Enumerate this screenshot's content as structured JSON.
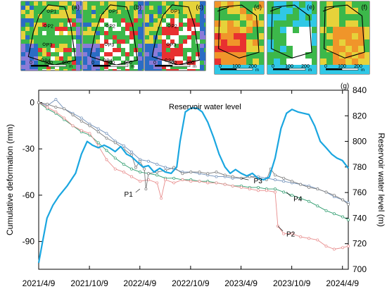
{
  "panels": [
    {
      "label": "(a)",
      "points": [
        {
          "name": "P1"
        },
        {
          "name": "P2"
        },
        {
          "name": "P3"
        },
        {
          "name": "P4"
        }
      ],
      "scale_ticks": [
        "0",
        "300",
        "600"
      ],
      "scale_unit": "m"
    },
    {
      "label": "(b)",
      "points": [
        {
          "name": "P1"
        },
        {
          "name": "P2"
        },
        {
          "name": "P3"
        },
        {
          "name": "P4"
        }
      ],
      "scale_ticks": [
        "0",
        "300",
        "600"
      ],
      "scale_unit": "m"
    },
    {
      "label": "(c)",
      "points": [
        {
          "name": "P1"
        },
        {
          "name": "P2"
        },
        {
          "name": "P3"
        },
        {
          "name": "P4"
        }
      ],
      "scale_ticks": [
        "0",
        "300",
        "600"
      ],
      "scale_unit": "m"
    },
    {
      "label": "(d)",
      "points": [],
      "scale_ticks": [
        "0",
        "100",
        "200"
      ],
      "scale_unit": "m"
    },
    {
      "label": "(e)",
      "points": [],
      "scale_ticks": [
        "0",
        "100",
        "200"
      ],
      "scale_unit": "m"
    },
    {
      "label": "(f)",
      "points": [],
      "scale_ticks": [
        "0",
        "100",
        "200"
      ],
      "scale_unit": "m"
    }
  ],
  "colors": {
    "water": "#1aa6e0",
    "P1": "#7a7a7a",
    "P2": "#e88c8c",
    "P3": "#6f8fb8",
    "P4": "#2e9c6e",
    "inset_blue": "#2b6cc4",
    "inset_purple": "#8b7bd8",
    "inset_green": "#3cb84a",
    "inset_yellow": "#e6d23a",
    "inset_orange": "#f0952a",
    "inset_red": "#e83030",
    "inset_cyan": "#30c8e6"
  },
  "chart_data": {
    "type": "line",
    "panel_label": "(g)",
    "xlabel": "",
    "ylabel": "Cumulative deformation (mm)",
    "y2label": "Reservoir water level (m)",
    "x_ticks": [
      "2021/4/9",
      "2021/10/9",
      "2022/4/9",
      "2022/10/9",
      "2023/4/9",
      "2023/10/9",
      "2024/4/9"
    ],
    "xlim": [
      "2021/4/9",
      "2024/4/30"
    ],
    "y_ticks": [
      0,
      -30,
      -60,
      -90
    ],
    "ylim": [
      -108,
      8
    ],
    "y2_ticks": [
      700,
      720,
      740,
      760,
      780,
      800,
      820,
      840
    ],
    "y2lim": [
      700,
      840
    ],
    "annotation": "Reservoir water level",
    "series": [
      {
        "name": "Reservoir water level",
        "axis": "right",
        "points": [
          [
            "2021/4/9",
            705
          ],
          [
            "2021/4/20",
            718
          ],
          [
            "2021/5/9",
            740
          ],
          [
            "2021/5/30",
            750
          ],
          [
            "2021/6/20",
            757
          ],
          [
            "2021/7/20",
            765
          ],
          [
            "2021/8/20",
            775
          ],
          [
            "2021/9/10",
            790
          ],
          [
            "2021/10/1",
            800
          ],
          [
            "2021/10/20",
            797
          ],
          [
            "2021/11/10",
            795
          ],
          [
            "2021/12/1",
            797
          ],
          [
            "2021/12/20",
            795
          ],
          [
            "2022/1/10",
            792
          ],
          [
            "2022/1/30",
            796
          ],
          [
            "2022/2/20",
            790
          ],
          [
            "2022/3/10",
            788
          ],
          [
            "2022/3/30",
            784
          ],
          [
            "2022/4/20",
            780
          ],
          [
            "2022/5/10",
            781
          ],
          [
            "2022/5/30",
            776
          ],
          [
            "2022/6/20",
            779
          ],
          [
            "2022/7/10",
            776
          ],
          [
            "2022/7/31",
            775
          ],
          [
            "2022/8/20",
            780
          ],
          [
            "2022/9/1",
            800
          ],
          [
            "2022/9/20",
            823
          ],
          [
            "2022/10/10",
            826
          ],
          [
            "2022/11/1",
            826
          ],
          [
            "2022/11/20",
            823
          ],
          [
            "2022/12/10",
            815
          ],
          [
            "2022/12/31",
            803
          ],
          [
            "2023/1/20",
            790
          ],
          [
            "2023/2/10",
            780
          ],
          [
            "2023/3/1",
            775
          ],
          [
            "2023/3/20",
            778
          ],
          [
            "2023/4/9",
            775
          ],
          [
            "2023/4/30",
            773
          ],
          [
            "2023/5/20",
            775
          ],
          [
            "2023/6/10",
            771
          ],
          [
            "2023/6/30",
            770
          ],
          [
            "2023/7/20",
            772
          ],
          [
            "2023/8/10",
            787
          ],
          [
            "2023/8/31",
            810
          ],
          [
            "2023/9/20",
            822
          ],
          [
            "2023/10/10",
            825
          ],
          [
            "2023/10/31",
            823
          ],
          [
            "2023/11/20",
            822
          ],
          [
            "2023/12/10",
            821
          ],
          [
            "2023/12/31",
            812
          ],
          [
            "2024/1/20",
            800
          ],
          [
            "2024/2/10",
            795
          ],
          [
            "2024/3/1",
            790
          ],
          [
            "2024/3/20",
            787
          ],
          [
            "2024/4/9",
            785
          ],
          [
            "2024/4/30",
            779
          ]
        ]
      },
      {
        "name": "P1",
        "axis": "left",
        "points": [
          [
            "2021/4/9",
            0
          ],
          [
            "2021/5/10",
            -1
          ],
          [
            "2021/6/10",
            -3
          ],
          [
            "2021/7/10",
            -4
          ],
          [
            "2021/8/10",
            -8
          ],
          [
            "2021/9/10",
            -12
          ],
          [
            "2021/10/10",
            -15
          ],
          [
            "2021/11/10",
            -19
          ],
          [
            "2021/12/10",
            -23
          ],
          [
            "2022/1/10",
            -26
          ],
          [
            "2022/2/10",
            -30
          ],
          [
            "2022/3/10",
            -34
          ],
          [
            "2022/3/25",
            -42
          ],
          [
            "2022/4/9",
            -38
          ],
          [
            "2022/4/25",
            -43
          ],
          [
            "2022/5/1",
            -56
          ],
          [
            "2022/5/10",
            -46
          ],
          [
            "2022/6/10",
            -45
          ],
          [
            "2022/7/10",
            -44
          ],
          [
            "2022/8/10",
            -42
          ],
          [
            "2022/9/10",
            -46
          ],
          [
            "2022/10/10",
            -45
          ],
          [
            "2022/11/10",
            -45
          ],
          [
            "2022/12/10",
            -46
          ],
          [
            "2023/1/10",
            -45
          ],
          [
            "2023/2/10",
            -47
          ],
          [
            "2023/3/10",
            -48
          ],
          [
            "2023/4/10",
            -49
          ],
          [
            "2023/5/10",
            -48
          ],
          [
            "2023/6/10",
            -49
          ],
          [
            "2023/7/10",
            -50
          ],
          [
            "2023/7/25",
            -43
          ],
          [
            "2023/8/10",
            -47
          ],
          [
            "2023/9/10",
            -49
          ],
          [
            "2023/10/10",
            -51
          ],
          [
            "2023/11/10",
            -53
          ],
          [
            "2023/12/10",
            -55
          ],
          [
            "2024/1/10",
            -56
          ],
          [
            "2024/2/10",
            -58
          ],
          [
            "2024/3/10",
            -60
          ],
          [
            "2024/4/10",
            -63
          ],
          [
            "2024/4/30",
            -66
          ]
        ]
      },
      {
        "name": "P2",
        "axis": "left",
        "points": [
          [
            "2021/4/9",
            0
          ],
          [
            "2021/5/10",
            -3
          ],
          [
            "2021/6/10",
            -6
          ],
          [
            "2021/7/10",
            -10
          ],
          [
            "2021/8/10",
            -15
          ],
          [
            "2021/9/10",
            -18
          ],
          [
            "2021/10/10",
            -20
          ],
          [
            "2021/11/10",
            -28
          ],
          [
            "2021/12/10",
            -37
          ],
          [
            "2022/1/10",
            -43
          ],
          [
            "2022/2/10",
            -45
          ],
          [
            "2022/3/10",
            -48
          ],
          [
            "2022/4/10",
            -51
          ],
          [
            "2022/5/10",
            -50
          ],
          [
            "2022/6/10",
            -52
          ],
          [
            "2022/6/25",
            -62
          ],
          [
            "2022/7/10",
            -50
          ],
          [
            "2022/8/10",
            -52
          ],
          [
            "2022/9/10",
            -50
          ],
          [
            "2022/10/10",
            -51
          ],
          [
            "2022/11/10",
            -51
          ],
          [
            "2022/12/10",
            -52
          ],
          [
            "2023/1/10",
            -52
          ],
          [
            "2023/2/10",
            -53
          ],
          [
            "2023/3/10",
            -54
          ],
          [
            "2023/4/10",
            -55
          ],
          [
            "2023/5/10",
            -56
          ],
          [
            "2023/6/10",
            -57
          ],
          [
            "2023/7/10",
            -57
          ],
          [
            "2023/8/10",
            -58
          ],
          [
            "2023/8/20",
            -80
          ],
          [
            "2023/9/10",
            -85
          ],
          [
            "2023/10/10",
            -85
          ],
          [
            "2023/11/10",
            -87
          ],
          [
            "2023/12/10",
            -88
          ],
          [
            "2024/1/10",
            -89
          ],
          [
            "2024/2/10",
            -93
          ],
          [
            "2024/3/10",
            -95
          ],
          [
            "2024/4/10",
            -94
          ],
          [
            "2024/4/30",
            -93
          ]
        ]
      },
      {
        "name": "P3",
        "axis": "left",
        "points": [
          [
            "2021/4/9",
            0
          ],
          [
            "2021/5/10",
            -2
          ],
          [
            "2021/6/10",
            2
          ],
          [
            "2021/7/10",
            -4
          ],
          [
            "2021/8/10",
            -7
          ],
          [
            "2021/9/10",
            -10
          ],
          [
            "2021/10/10",
            -14
          ],
          [
            "2021/11/10",
            -17
          ],
          [
            "2021/12/10",
            -20
          ],
          [
            "2022/1/10",
            -25
          ],
          [
            "2022/2/10",
            -28
          ],
          [
            "2022/3/10",
            -32
          ],
          [
            "2022/4/10",
            -37
          ],
          [
            "2022/5/10",
            -38
          ],
          [
            "2022/6/10",
            -40
          ],
          [
            "2022/7/10",
            -42
          ],
          [
            "2022/8/10",
            -43
          ],
          [
            "2022/9/10",
            -45
          ],
          [
            "2022/10/10",
            -45
          ],
          [
            "2022/11/10",
            -46
          ],
          [
            "2022/12/10",
            -47
          ],
          [
            "2023/1/10",
            -48
          ],
          [
            "2023/2/10",
            -48
          ],
          [
            "2023/3/10",
            -49
          ],
          [
            "2023/4/10",
            -49
          ],
          [
            "2023/5/10",
            -48
          ],
          [
            "2023/6/10",
            -48
          ],
          [
            "2023/7/10",
            -49
          ],
          [
            "2023/8/10",
            -50
          ],
          [
            "2023/9/10",
            -51
          ],
          [
            "2023/10/10",
            -52
          ],
          [
            "2023/11/10",
            -53
          ],
          [
            "2023/12/10",
            -54
          ],
          [
            "2024/1/10",
            -56
          ],
          [
            "2024/2/10",
            -58
          ],
          [
            "2024/3/10",
            -61
          ],
          [
            "2024/4/10",
            -63
          ],
          [
            "2024/4/30",
            -65
          ]
        ]
      },
      {
        "name": "P4",
        "axis": "left",
        "points": [
          [
            "2021/4/9",
            0
          ],
          [
            "2021/5/10",
            -4
          ],
          [
            "2021/6/10",
            -7
          ],
          [
            "2021/7/10",
            -11
          ],
          [
            "2021/8/10",
            -15
          ],
          [
            "2021/9/10",
            -19
          ],
          [
            "2021/10/10",
            -21
          ],
          [
            "2021/11/10",
            -26
          ],
          [
            "2021/12/10",
            -31
          ],
          [
            "2022/1/10",
            -36
          ],
          [
            "2022/2/10",
            -40
          ],
          [
            "2022/3/10",
            -43
          ],
          [
            "2022/4/10",
            -45
          ],
          [
            "2022/5/10",
            -46
          ],
          [
            "2022/6/10",
            -47
          ],
          [
            "2022/7/10",
            -49
          ],
          [
            "2022/8/10",
            -49
          ],
          [
            "2022/9/10",
            -50
          ],
          [
            "2022/10/10",
            -50
          ],
          [
            "2022/11/10",
            -51
          ],
          [
            "2022/12/10",
            -51
          ],
          [
            "2023/1/10",
            -52
          ],
          [
            "2023/2/10",
            -53
          ],
          [
            "2023/3/10",
            -54
          ],
          [
            "2023/4/10",
            -54
          ],
          [
            "2023/5/10",
            -55
          ],
          [
            "2023/6/10",
            -55
          ],
          [
            "2023/7/10",
            -56
          ],
          [
            "2023/8/10",
            -56
          ],
          [
            "2023/9/10",
            -58
          ],
          [
            "2023/10/10",
            -60
          ],
          [
            "2023/11/10",
            -62
          ],
          [
            "2023/12/10",
            -64
          ],
          [
            "2024/1/10",
            -67
          ],
          [
            "2024/2/10",
            -70
          ],
          [
            "2024/3/10",
            -72
          ],
          [
            "2024/4/10",
            -74
          ],
          [
            "2024/4/30",
            -76
          ]
        ]
      }
    ],
    "series_labels": [
      "P1",
      "P2",
      "P3",
      "P4"
    ]
  }
}
